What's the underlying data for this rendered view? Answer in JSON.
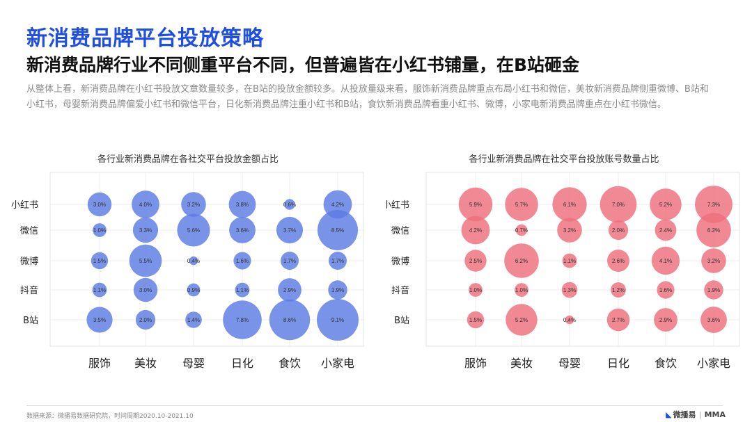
{
  "page": {
    "title": "新消费品牌平台投放策略",
    "subtitle": "新消费品牌行业不同侧重平台不同，但普遍皆在小红书铺量，在B站砸金",
    "description": "从整体上看，新消费品牌在小红书投放文章数量较多，在B站的投放金额较多。从投放量级来看，服饰新消费品牌重点布局小红书和微信，美妆新消费品牌侧重微博、B站和小红书，母婴新消费品牌偏爱小红书和微信平台，日化新消费品牌注重小红书和B站，食饮新消费品牌看重小红书、微博，小家电新消费品牌重点在小红书微信。",
    "source": "数据来源：微播易数据研究院，时间周期2020.10-2021.10",
    "logo_text": "微播易",
    "logo_partner": "MMA"
  },
  "colors": {
    "title": "#1f4fe0",
    "left_bubble": "#5b7be3",
    "right_bubble": "#ee6f7d"
  },
  "chart_data": [
    {
      "type": "scatter",
      "title": "各行业新消费品牌在各社交平台投放金额占比",
      "categories": [
        "服饰",
        "美妆",
        "母婴",
        "日化",
        "食饮",
        "小家电"
      ],
      "platforms": [
        "小红书",
        "微信",
        "微博",
        "抖音",
        "B站"
      ],
      "series": [
        {
          "name": "小红书",
          "values": [
            3.0,
            4.0,
            3.2,
            3.8,
            0.6,
            4.2
          ]
        },
        {
          "name": "微信",
          "values": [
            1.0,
            3.3,
            5.6,
            3.6,
            3.7,
            8.5
          ]
        },
        {
          "name": "微博",
          "values": [
            1.5,
            5.5,
            0.4,
            1.6,
            1.7,
            1.7
          ]
        },
        {
          "name": "抖音",
          "values": [
            1.1,
            3.0,
            0.9,
            1.1,
            2.9,
            1.9
          ]
        },
        {
          "name": "B站",
          "values": [
            3.5,
            2.0,
            1.4,
            7.8,
            8.6,
            9.1
          ]
        }
      ],
      "value_unit": "%",
      "color": "#5b7be3"
    },
    {
      "type": "scatter",
      "title": "各行业新消费品牌在社交平台投放账号数量占比",
      "categories": [
        "服饰",
        "美妆",
        "母婴",
        "日化",
        "食饮",
        "小家电"
      ],
      "platforms": [
        "小红书",
        "微信",
        "微博",
        "抖音",
        "B站"
      ],
      "series": [
        {
          "name": "小红书",
          "values": [
            5.9,
            5.7,
            6.1,
            7.0,
            5.2,
            7.3
          ]
        },
        {
          "name": "微信",
          "values": [
            4.2,
            0.7,
            3.2,
            2.0,
            2.4,
            6.2
          ]
        },
        {
          "name": "微博",
          "values": [
            2.5,
            6.2,
            1.1,
            2.6,
            4.1,
            3.2
          ]
        },
        {
          "name": "抖音",
          "values": [
            1.0,
            1.0,
            1.3,
            1.2,
            1.6,
            1.9
          ]
        },
        {
          "name": "B站",
          "values": [
            1.5,
            5.2,
            0.4,
            2.7,
            2.9,
            3.6
          ]
        }
      ],
      "value_unit": "%",
      "color": "#ee6f7d"
    }
  ]
}
